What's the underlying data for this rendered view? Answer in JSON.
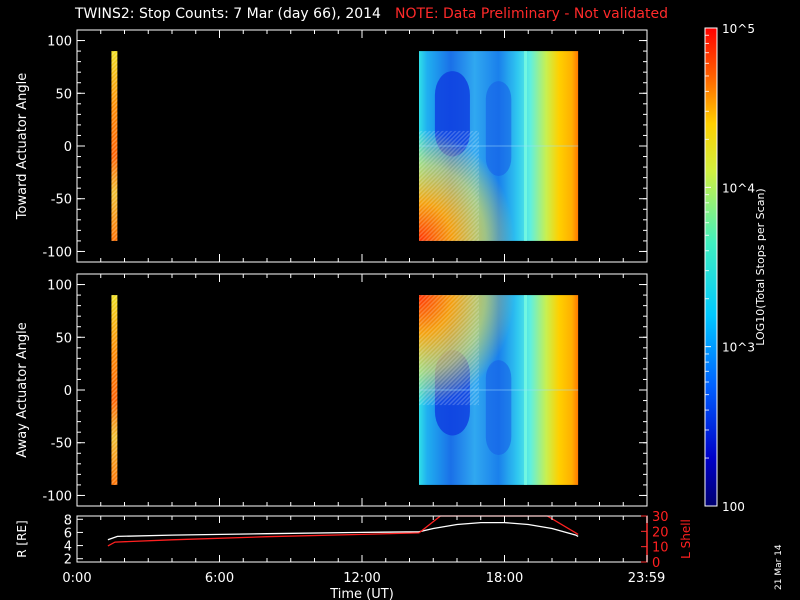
{
  "title": {
    "main": "TWINS2: Stop Counts:  7 Mar (day  66), 2014",
    "note": "NOTE: Data Preliminary - Not validated"
  },
  "side_date": "21 Mar 14",
  "colors": {
    "background": "#000000",
    "axes": "#ffffff",
    "note": "#ff2a2a",
    "r_line": "#ffffff",
    "lshell_line": "#ff2020"
  },
  "chart_data": [
    {
      "type": "heatmap",
      "panel": "top",
      "ylabel": "Toward Actuator Angle",
      "ylim": [
        -110,
        110
      ],
      "yticks": [
        "100",
        "50",
        "0",
        "-50",
        "-100"
      ],
      "xlim": [
        0,
        24
      ],
      "data_y_range": [
        -90,
        90
      ],
      "color_scale": "log",
      "segments": [
        {
          "x_start": 1.45,
          "x_end": 1.7,
          "level": 0.78
        },
        {
          "x_start": 14.4,
          "x_end": 21.1,
          "level": 0.4
        }
      ]
    },
    {
      "type": "heatmap",
      "panel": "middle",
      "ylabel": "Away Actuator Angle",
      "ylim": [
        -110,
        110
      ],
      "yticks": [
        "100",
        "50",
        "0",
        "-50",
        "-100"
      ],
      "xlim": [
        0,
        24
      ],
      "data_y_range": [
        -90,
        90
      ],
      "color_scale": "log",
      "segments": [
        {
          "x_start": 1.45,
          "x_end": 1.7,
          "level": 0.78
        },
        {
          "x_start": 14.4,
          "x_end": 21.1,
          "level": 0.4
        }
      ]
    },
    {
      "type": "line",
      "panel": "bottom",
      "ylabel_left": "R [RE]",
      "ylabel_right": "L Shell",
      "ylim_left": [
        1.5,
        8.5
      ],
      "ylim_right": [
        0,
        30
      ],
      "yticks_left": [
        "8",
        "6",
        "4",
        "2"
      ],
      "yticks_right": [
        "30",
        "20",
        "10",
        "0"
      ],
      "xlabel": "Time (UT)",
      "xticks": [
        "0:00",
        "6:00",
        "12:00",
        "18:00",
        "23:59"
      ],
      "xtick_values": [
        0,
        6,
        12,
        18,
        23.98
      ],
      "xlim": [
        0,
        24
      ],
      "series": [
        {
          "axis": "left",
          "x": [
            1.3,
            1.7,
            4,
            8,
            12,
            14.4,
            15,
            16,
            17,
            18,
            19,
            20,
            21,
            21.1
          ],
          "y": [
            4.9,
            5.4,
            5.6,
            5.8,
            6.0,
            6.1,
            6.6,
            7.2,
            7.5,
            7.5,
            7.2,
            6.6,
            5.6,
            5.4
          ]
        },
        {
          "axis": "right",
          "x": [
            1.3,
            1.6,
            4,
            8,
            12,
            14.4,
            15.3,
            19.8,
            21,
            21.1
          ],
          "y": [
            10.5,
            13,
            14.5,
            16.5,
            18,
            19,
            30,
            30,
            19,
            18
          ]
        }
      ]
    }
  ],
  "colorbar": {
    "label": "LOG10(Total Stops per Scan)",
    "ticks": [
      "10^5",
      "10^4",
      "10^3",
      "100"
    ],
    "tick_values": [
      100000,
      10000,
      1000,
      100
    ],
    "range": [
      100,
      100000
    ]
  }
}
